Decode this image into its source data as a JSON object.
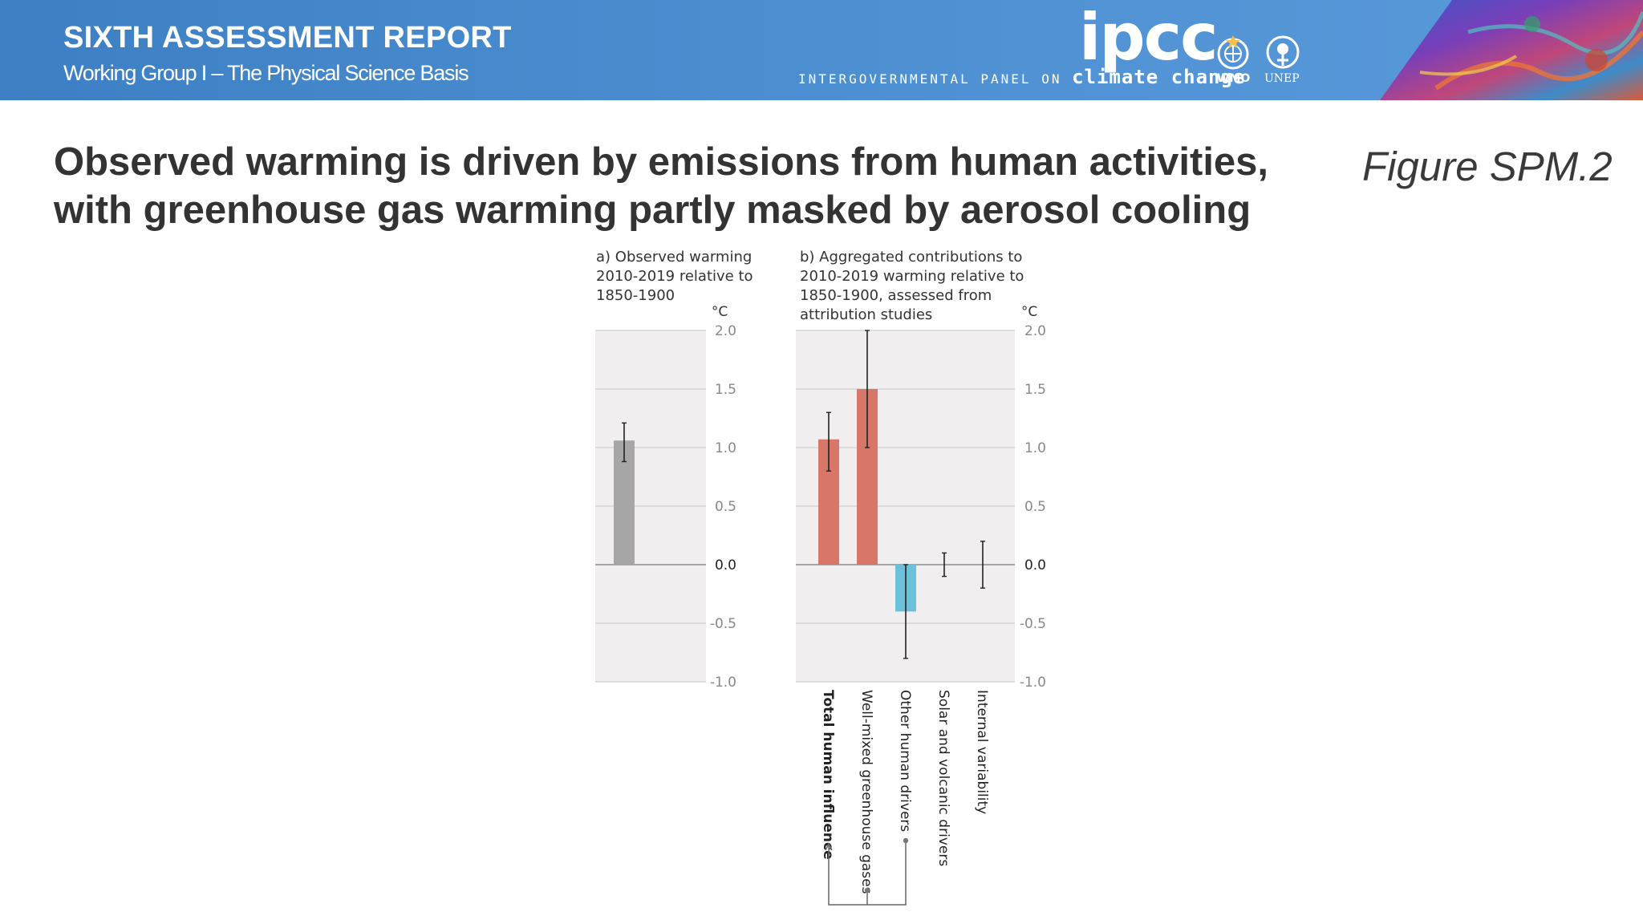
{
  "header": {
    "report_title": "SIXTH ASSESSMENT REPORT",
    "report_subtitle": "Working Group I – The Physical Science Basis",
    "logo_text": "ipcc",
    "org_name_prefix": "INTERGOVERNMENTAL PANEL ON",
    "org_name_suffix": "climate change",
    "partners": [
      {
        "label": "WMO",
        "icon": "wmo-emblem-icon"
      },
      {
        "label": "UNEP",
        "icon": "unep-emblem-icon"
      }
    ],
    "colors": {
      "banner": "#4b8ed0",
      "text": "#ffffff"
    }
  },
  "slide": {
    "title_line1": "Observed warming is driven by emissions from human activities,",
    "title_line2": "with greenhouse gas warming partly masked by aerosol cooling",
    "figure_ref": "Figure SPM.2"
  },
  "chart_data": [
    {
      "type": "bar",
      "title_lines": [
        "a) Observed warming",
        "2010-2019 relative to",
        "1850-1900"
      ],
      "unit": "°C",
      "ylim": [
        -1.0,
        2.0
      ],
      "yticks": [
        "2.0",
        "1.5",
        "1.0",
        "0.5",
        "0.0",
        "-0.5",
        "-1.0"
      ],
      "grid": true,
      "categories": [
        ""
      ],
      "values": [
        1.06
      ],
      "error_low": [
        0.88
      ],
      "error_high": [
        1.21
      ],
      "colors": [
        "#a6a6a6"
      ]
    },
    {
      "type": "bar",
      "title_lines": [
        "b) Aggregated contributions to",
        "2010-2019 warming relative to",
        "1850-1900, assessed from",
        "attribution studies"
      ],
      "unit": "°C",
      "ylim": [
        -1.0,
        2.0
      ],
      "yticks": [
        "2.0",
        "1.5",
        "1.0",
        "0.5",
        "0.0",
        "-0.5",
        "-1.0"
      ],
      "grid": true,
      "categories": [
        "Total human influence",
        "Well-mixed greenhouse gases",
        "Other human drivers",
        "Solar and volcanic drivers",
        "Internal variability"
      ],
      "values": [
        1.07,
        1.5,
        -0.4,
        0.0,
        0.0
      ],
      "error_low": [
        0.8,
        1.0,
        -0.8,
        -0.1,
        -0.2
      ],
      "error_high": [
        1.3,
        2.0,
        0.0,
        0.1,
        0.2
      ],
      "colors": [
        "#d9766a",
        "#d9766a",
        "#6cc0da",
        "#d9766a",
        "#d9766a"
      ],
      "grouping_note": "Total human influence = Well-mixed greenhouse gases + Other human drivers"
    }
  ]
}
